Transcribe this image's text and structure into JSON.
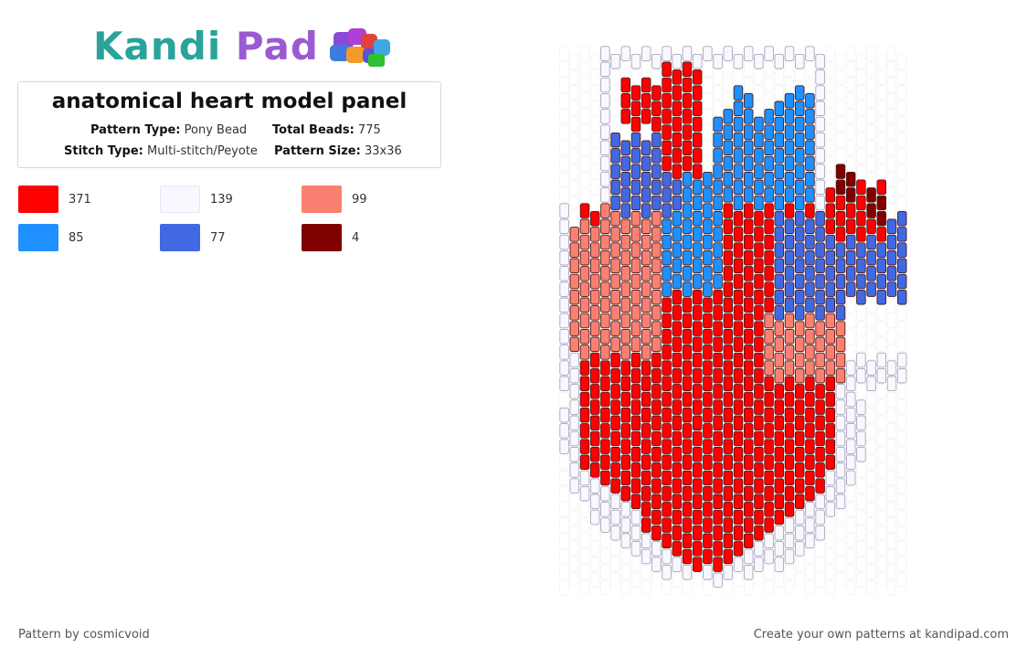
{
  "brand": {
    "logo_text_1": "Kandi",
    "logo_text_2": "Pad",
    "logo_icon": "beads-icon"
  },
  "pattern": {
    "title": "anatomical heart model panel",
    "type_label": "Pattern Type:",
    "type_value": "Pony Bead",
    "beads_label": "Total Beads:",
    "beads_value": "775",
    "stitch_label": "Stitch Type:",
    "stitch_value": "Multi-stitch/Peyote",
    "size_label": "Pattern Size:",
    "size_value": "33x36"
  },
  "legend": [
    {
      "color": "#ff0000",
      "count": "371"
    },
    {
      "color": "#f8f8ff",
      "count": "139"
    },
    {
      "color": "#fa8072",
      "count": "99"
    },
    {
      "color": "#1e90ff",
      "count": "85"
    },
    {
      "color": "#4169e1",
      "count": "77"
    },
    {
      "color": "#800000",
      "count": "4"
    }
  ],
  "footer": {
    "credit": "Pattern by cosmicvoid",
    "cta": "Create your own patterns at kandipad.com"
  }
}
